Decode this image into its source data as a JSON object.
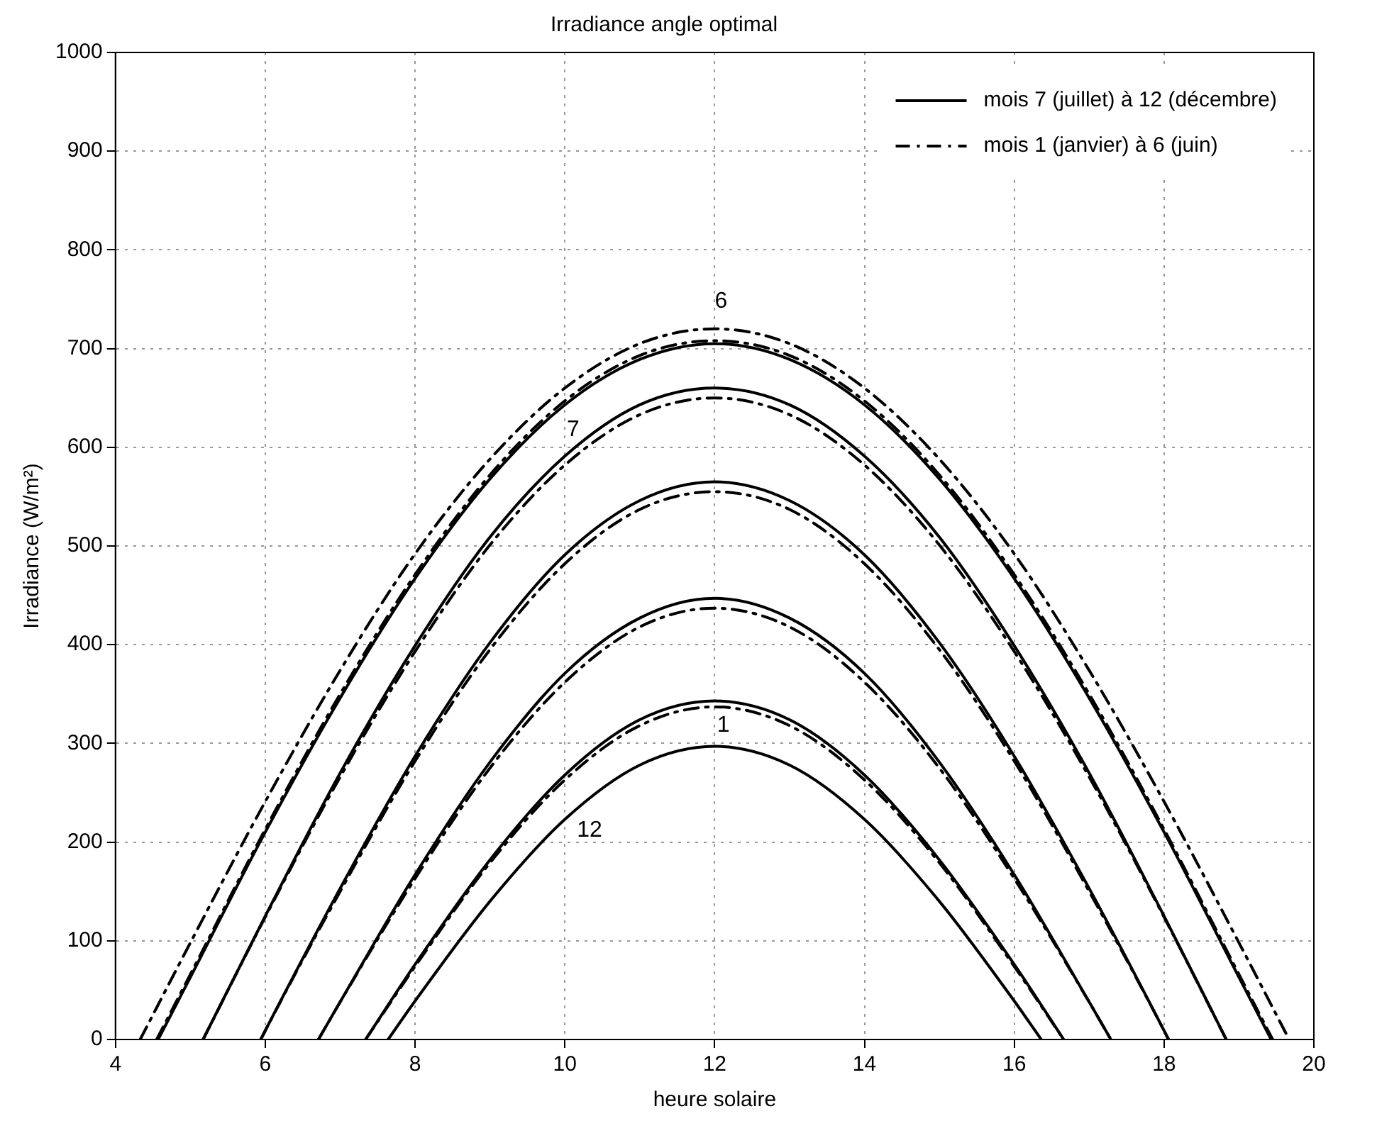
{
  "chart_data": {
    "type": "line",
    "title": "Irradiance angle optimal",
    "xlabel": "heure solaire",
    "ylabel": "Irradiance (W/m²)",
    "xlim": [
      4,
      20
    ],
    "xticks": [
      4,
      6,
      8,
      10,
      12,
      14,
      16,
      18,
      20
    ],
    "ylim": [
      0,
      1000
    ],
    "yticks": [
      0,
      100,
      200,
      300,
      400,
      500,
      600,
      700,
      800,
      900,
      1000
    ],
    "grid": true,
    "legend": "top right",
    "marker": "none",
    "annotations": [
      "6",
      "7",
      "1",
      "12"
    ],
    "series": [
      {
        "name": "mois 7 (juillet) à 12 (décembre)",
        "color": "#000000",
        "line_style": "solid",
        "x": [
          4.57,
          5,
          6,
          7,
          8,
          9,
          10,
          11,
          12,
          13,
          14,
          15,
          16,
          17,
          18,
          19,
          19.43
        ],
        "values": [
          0,
          63,
          210,
          346,
          467,
          568,
          643,
          689,
          705,
          689,
          643,
          568,
          467,
          346,
          210,
          63,
          0
        ]
      },
      {
        "color": "#000000",
        "line_style": "solid",
        "x": [
          5.17,
          6,
          7,
          8,
          9,
          10,
          11,
          12,
          13,
          14,
          15,
          16,
          17,
          18,
          18.83
        ],
        "values": [
          0,
          125,
          270,
          399,
          509,
          591,
          643,
          660,
          643,
          591,
          509,
          399,
          270,
          125,
          0
        ]
      },
      {
        "color": "#000000",
        "line_style": "solid",
        "x": [
          5.94,
          6,
          7,
          8,
          9,
          10,
          11,
          12,
          13,
          14,
          15,
          16,
          17,
          18,
          18.06
        ],
        "values": [
          0,
          9,
          153,
          287,
          402,
          491,
          546,
          565,
          546,
          491,
          402,
          287,
          153,
          9,
          0
        ]
      },
      {
        "color": "#000000",
        "line_style": "solid",
        "x": [
          6.71,
          7,
          8,
          9,
          10,
          11,
          12,
          13,
          14,
          15,
          16,
          17,
          17.29
        ],
        "values": [
          0,
          38,
          167,
          281,
          371,
          427,
          447,
          427,
          371,
          281,
          167,
          38,
          0
        ]
      },
      {
        "color": "#000000",
        "line_style": "solid",
        "x": [
          7.34,
          8,
          9,
          10,
          11,
          12,
          13,
          14,
          15,
          16,
          16.66
        ],
        "values": [
          0,
          76,
          182,
          268,
          324,
          343,
          324,
          268,
          182,
          76,
          0
        ]
      },
      {
        "color": "#000000",
        "line_style": "solid",
        "x": [
          7.64,
          8,
          9,
          10,
          11,
          12,
          13,
          14,
          15,
          16,
          16.36
        ],
        "values": [
          0,
          39,
          140,
          223,
          278,
          297,
          278,
          223,
          140,
          39,
          0
        ]
      },
      {
        "name": "mois 1 (janvier) à 6 (juin)",
        "color": "#000000",
        "line_style": "dashdot",
        "x": [
          7.34,
          8,
          9,
          10,
          11,
          12,
          13,
          14,
          15,
          16,
          16.66
        ],
        "values": [
          0,
          74,
          179,
          263,
          318,
          337,
          318,
          263,
          179,
          74,
          0
        ]
      },
      {
        "color": "#000000",
        "line_style": "dashdot",
        "x": [
          6.71,
          7,
          8,
          9,
          10,
          11,
          12,
          13,
          14,
          15,
          16,
          17,
          17.29
        ],
        "values": [
          0,
          38,
          163,
          275,
          362,
          418,
          437,
          418,
          362,
          275,
          163,
          38,
          0
        ]
      },
      {
        "color": "#000000",
        "line_style": "dashdot",
        "x": [
          5.94,
          6,
          7,
          8,
          9,
          10,
          11,
          12,
          13,
          14,
          15,
          16,
          17,
          18,
          18.06
        ],
        "values": [
          0,
          9,
          150,
          282,
          395,
          482,
          537,
          555,
          537,
          482,
          395,
          282,
          150,
          9,
          0
        ]
      },
      {
        "color": "#000000",
        "line_style": "dashdot",
        "x": [
          5.17,
          6,
          7,
          8,
          9,
          10,
          11,
          12,
          13,
          14,
          15,
          16,
          17,
          18,
          18.83
        ],
        "values": [
          0,
          124,
          266,
          393,
          501,
          582,
          633,
          650,
          633,
          582,
          501,
          393,
          266,
          124,
          0
        ]
      },
      {
        "color": "#000000",
        "line_style": "dashdot",
        "x": [
          4.55,
          5,
          6,
          7,
          8,
          9,
          10,
          11,
          12,
          13,
          14,
          15,
          16,
          17,
          18,
          19,
          19.45
        ],
        "values": [
          0,
          66,
          213,
          350,
          471,
          572,
          647,
          693,
          708,
          693,
          647,
          572,
          471,
          350,
          213,
          66,
          0
        ]
      },
      {
        "color": "#000000",
        "line_style": "dashdot",
        "x": [
          4.33,
          5,
          6,
          7,
          8,
          9,
          10,
          11,
          12,
          13,
          14,
          15,
          16,
          17,
          18,
          19,
          19.67
        ],
        "values": [
          0,
          98,
          241,
          374,
          492,
          588,
          660,
          705,
          720,
          705,
          660,
          588,
          492,
          374,
          241,
          98,
          0
        ]
      }
    ]
  }
}
